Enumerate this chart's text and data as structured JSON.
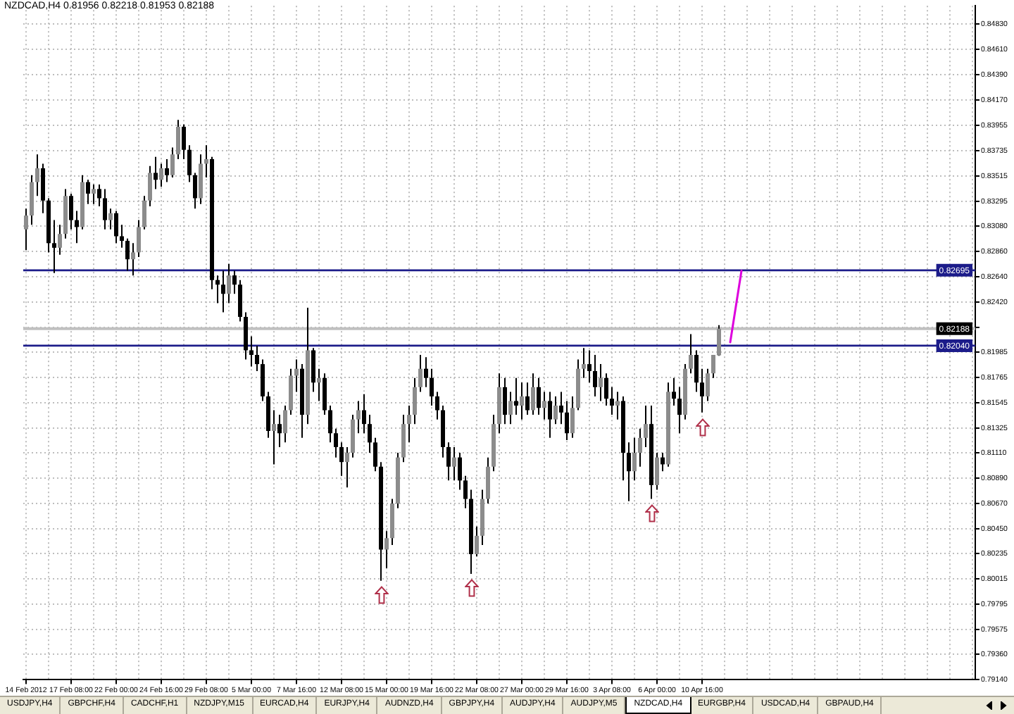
{
  "chart_data": {
    "type": "candlestick",
    "title": "NZDCAD,H4 0.81956 0.82218 0.81953 0.82188",
    "color": "#000000",
    "grid": true,
    "categories": [
      "14 Feb 2012",
      null,
      null,
      null,
      null,
      null,
      null,
      null,
      "17 Feb 08:00",
      null,
      null,
      null,
      null,
      null,
      null,
      null,
      "22 Feb 00:00",
      null,
      null,
      null,
      null,
      null,
      null,
      null,
      "24 Feb 16:00",
      null,
      null,
      null,
      null,
      null,
      null,
      null,
      "29 Feb 08:00",
      null,
      null,
      null,
      null,
      null,
      null,
      null,
      "5 Mar 00:00",
      null,
      null,
      null,
      null,
      null,
      null,
      null,
      "7 Mar 16:00",
      null,
      null,
      null,
      null,
      null,
      null,
      null,
      "12 Mar 08:00",
      null,
      null,
      null,
      null,
      null,
      null,
      null,
      "15 Mar 00:00",
      null,
      null,
      null,
      null,
      null,
      null,
      null,
      "19 Mar 16:00",
      null,
      null,
      null,
      null,
      null,
      null,
      null,
      "22 Mar 08:00",
      null,
      null,
      null,
      null,
      null,
      null,
      null,
      "27 Mar 00:00",
      null,
      null,
      null,
      null,
      null,
      null,
      null,
      "29 Mar 16:00",
      null,
      null,
      null,
      null,
      null,
      null,
      null,
      "3 Apr 08:00",
      null,
      null,
      null,
      null,
      null,
      null,
      null,
      "6 Apr 00:00",
      null,
      null,
      null,
      null,
      null,
      null,
      null,
      "10 Apr 16:00",
      null,
      null,
      null,
      null,
      null,
      null,
      null,
      null,
      null,
      null,
      null,
      null,
      null,
      null,
      null,
      null,
      null,
      null,
      null,
      null,
      null,
      null,
      null,
      null,
      null,
      null,
      null,
      null,
      null,
      null,
      null,
      null,
      null,
      null,
      null,
      null,
      null,
      null,
      null,
      null,
      null,
      null,
      null,
      null,
      null,
      null,
      null,
      null
    ],
    "ohlc": [
      [
        0.8305,
        0.8323,
        0.8287,
        0.8317
      ],
      [
        0.8317,
        0.8352,
        0.8309,
        0.8346
      ],
      [
        0.8346,
        0.837,
        0.8334,
        0.8358
      ],
      [
        0.8358,
        0.8362,
        0.8319,
        0.833
      ],
      [
        0.833,
        0.8332,
        0.8285,
        0.8293
      ],
      [
        0.8293,
        0.8313,
        0.8267,
        0.8289
      ],
      [
        0.8289,
        0.8309,
        0.8283,
        0.8301
      ],
      [
        0.8301,
        0.834,
        0.8297,
        0.8334
      ],
      [
        0.8334,
        0.8336,
        0.8305,
        0.8313
      ],
      [
        0.8313,
        0.8321,
        0.8293,
        0.8307
      ],
      [
        0.8307,
        0.8352,
        0.8305,
        0.8346
      ],
      [
        0.8346,
        0.8348,
        0.8327,
        0.8336
      ],
      [
        0.8336,
        0.8344,
        0.8327,
        0.834
      ],
      [
        0.834,
        0.8344,
        0.8325,
        0.8332
      ],
      [
        0.8332,
        0.834,
        0.8305,
        0.8313
      ],
      [
        0.8313,
        0.8323,
        0.8305,
        0.8319
      ],
      [
        0.8319,
        0.8321,
        0.8293,
        0.8299
      ],
      [
        0.8299,
        0.8309,
        0.8289,
        0.8295
      ],
      [
        0.8295,
        0.8297,
        0.8269,
        0.8279
      ],
      [
        0.8279,
        0.8293,
        0.8265,
        0.8285
      ],
      [
        0.8285,
        0.8313,
        0.8281,
        0.8307
      ],
      [
        0.8307,
        0.8334,
        0.8305,
        0.833
      ],
      [
        0.833,
        0.836,
        0.8325,
        0.8354
      ],
      [
        0.8354,
        0.8368,
        0.834,
        0.8348
      ],
      [
        0.8348,
        0.8362,
        0.8342,
        0.8358
      ],
      [
        0.8358,
        0.8366,
        0.8346,
        0.8352
      ],
      [
        0.8352,
        0.8376,
        0.835,
        0.837
      ],
      [
        0.837,
        0.84,
        0.8366,
        0.8394
      ],
      [
        0.8394,
        0.8396,
        0.8366,
        0.8374
      ],
      [
        0.8374,
        0.8378,
        0.8346,
        0.8352
      ],
      [
        0.8352,
        0.8354,
        0.8323,
        0.8332
      ],
      [
        0.8332,
        0.837,
        0.8327,
        0.8362
      ],
      [
        0.8362,
        0.8378,
        0.835,
        0.8366
      ],
      [
        0.8366,
        0.8368,
        0.8253,
        0.8261
      ],
      [
        0.8261,
        0.8265,
        0.8241,
        0.8257
      ],
      [
        0.8257,
        0.8269,
        0.8233,
        0.8249
      ],
      [
        0.8249,
        0.8275,
        0.8241,
        0.8265
      ],
      [
        0.8265,
        0.8269,
        0.8249,
        0.8257
      ],
      [
        0.8257,
        0.8261,
        0.8225,
        0.8229
      ],
      [
        0.8229,
        0.8233,
        0.8192,
        0.82
      ],
      [
        0.82,
        0.8212,
        0.8186,
        0.8196
      ],
      [
        0.8196,
        0.8204,
        0.8182,
        0.8188
      ],
      [
        0.8188,
        0.8192,
        0.8156,
        0.816
      ],
      [
        0.816,
        0.8164,
        0.8124,
        0.813
      ],
      [
        0.813,
        0.8148,
        0.8101,
        0.8136
      ],
      [
        0.8136,
        0.8144,
        0.8116,
        0.8128
      ],
      [
        0.8128,
        0.8152,
        0.812,
        0.8148
      ],
      [
        0.8148,
        0.8184,
        0.8144,
        0.8178
      ],
      [
        0.8178,
        0.8192,
        0.8164,
        0.8184
      ],
      [
        0.8184,
        0.8188,
        0.8124,
        0.8144
      ],
      [
        0.8144,
        0.8237,
        0.8136,
        0.82
      ],
      [
        0.82,
        0.8202,
        0.8164,
        0.8172
      ],
      [
        0.8172,
        0.8184,
        0.8156,
        0.8176
      ],
      [
        0.8176,
        0.818,
        0.8144,
        0.8148
      ],
      [
        0.8148,
        0.8152,
        0.812,
        0.8128
      ],
      [
        0.8128,
        0.8132,
        0.8107,
        0.8116
      ],
      [
        0.8116,
        0.812,
        0.8091,
        0.8103
      ],
      [
        0.8103,
        0.8116,
        0.8081,
        0.8111
      ],
      [
        0.8111,
        0.8144,
        0.8107,
        0.814
      ],
      [
        0.814,
        0.8156,
        0.8128,
        0.8148
      ],
      [
        0.8148,
        0.8162,
        0.8128,
        0.8136
      ],
      [
        0.8136,
        0.8144,
        0.8111,
        0.812
      ],
      [
        0.812,
        0.8124,
        0.8095,
        0.8099
      ],
      [
        0.8099,
        0.8103,
        0.8,
        0.8027
      ],
      [
        0.8027,
        0.8043,
        0.8011,
        0.8037
      ],
      [
        0.8037,
        0.8071,
        0.8031,
        0.8067
      ],
      [
        0.8067,
        0.8111,
        0.8063,
        0.8107
      ],
      [
        0.8107,
        0.8144,
        0.8103,
        0.8136
      ],
      [
        0.8136,
        0.8152,
        0.812,
        0.8144
      ],
      [
        0.8144,
        0.8176,
        0.8136,
        0.8168
      ],
      [
        0.8168,
        0.8196,
        0.8164,
        0.8184
      ],
      [
        0.8184,
        0.8194,
        0.8168,
        0.8176
      ],
      [
        0.8176,
        0.8184,
        0.8152,
        0.816
      ],
      [
        0.816,
        0.8164,
        0.814,
        0.8148
      ],
      [
        0.8148,
        0.8152,
        0.8107,
        0.8116
      ],
      [
        0.8116,
        0.812,
        0.8087,
        0.8099
      ],
      [
        0.8099,
        0.8116,
        0.8087,
        0.8107
      ],
      [
        0.8107,
        0.8111,
        0.8079,
        0.8087
      ],
      [
        0.8087,
        0.8091,
        0.8063,
        0.8071
      ],
      [
        0.8071,
        0.8079,
        0.8006,
        0.8023
      ],
      [
        0.8023,
        0.8047,
        0.8021,
        0.8039
      ],
      [
        0.8039,
        0.8079,
        0.8031,
        0.8071
      ],
      [
        0.8071,
        0.8107,
        0.8067,
        0.8099
      ],
      [
        0.8099,
        0.8144,
        0.8095,
        0.8136
      ],
      [
        0.8136,
        0.818,
        0.8128,
        0.8168
      ],
      [
        0.8168,
        0.8176,
        0.8136,
        0.8144
      ],
      [
        0.8144,
        0.8164,
        0.8136,
        0.8156
      ],
      [
        0.8156,
        0.8176,
        0.8144,
        0.8152
      ],
      [
        0.8152,
        0.8172,
        0.814,
        0.816
      ],
      [
        0.816,
        0.8172,
        0.8144,
        0.8148
      ],
      [
        0.8148,
        0.818,
        0.8144,
        0.8168
      ],
      [
        0.8168,
        0.8176,
        0.8144,
        0.815
      ],
      [
        0.815,
        0.8164,
        0.814,
        0.8156
      ],
      [
        0.8156,
        0.8164,
        0.8124,
        0.814
      ],
      [
        0.814,
        0.816,
        0.8136,
        0.8152
      ],
      [
        0.8152,
        0.8164,
        0.8136,
        0.8146
      ],
      [
        0.8146,
        0.8156,
        0.8122,
        0.8128
      ],
      [
        0.8128,
        0.816,
        0.8124,
        0.815
      ],
      [
        0.815,
        0.8192,
        0.8148,
        0.8184
      ],
      [
        0.8184,
        0.8202,
        0.8176,
        0.8188
      ],
      [
        0.8188,
        0.82,
        0.8172,
        0.8182
      ],
      [
        0.8182,
        0.8196,
        0.816,
        0.8168
      ],
      [
        0.8168,
        0.8188,
        0.8156,
        0.8176
      ],
      [
        0.8176,
        0.818,
        0.8152,
        0.8158
      ],
      [
        0.8158,
        0.8168,
        0.8144,
        0.8152
      ],
      [
        0.8152,
        0.8164,
        0.814,
        0.8156
      ],
      [
        0.8156,
        0.816,
        0.8087,
        0.8111
      ],
      [
        0.8111,
        0.812,
        0.8069,
        0.8095
      ],
      [
        0.8095,
        0.8124,
        0.8087,
        0.8111
      ],
      [
        0.8111,
        0.8132,
        0.8099,
        0.8124
      ],
      [
        0.8124,
        0.8152,
        0.8116,
        0.8136
      ],
      [
        0.8136,
        0.8152,
        0.8071,
        0.8083
      ],
      [
        0.8083,
        0.8111,
        0.8079,
        0.8107
      ],
      [
        0.8107,
        0.8111,
        0.8095,
        0.8101
      ],
      [
        0.8101,
        0.8172,
        0.8099,
        0.8164
      ],
      [
        0.8164,
        0.8176,
        0.8152,
        0.8158
      ],
      [
        0.8158,
        0.8168,
        0.8128,
        0.8144
      ],
      [
        0.8144,
        0.8188,
        0.814,
        0.8184
      ],
      [
        0.8184,
        0.8214,
        0.818,
        0.8196
      ],
      [
        0.8196,
        0.82,
        0.8164,
        0.8172
      ],
      [
        0.8172,
        0.8184,
        0.8146,
        0.816
      ],
      [
        0.816,
        0.8184,
        0.8156,
        0.818
      ],
      [
        0.818,
        0.8196,
        0.8176,
        0.8196
      ],
      [
        0.81956,
        0.82218,
        0.81953,
        0.82188
      ],
      null,
      null,
      null,
      null,
      null,
      null,
      null,
      null,
      null,
      null,
      null,
      null,
      null,
      null,
      null,
      null,
      null,
      null,
      null,
      null,
      null,
      null,
      null,
      null,
      null,
      null,
      null,
      null,
      null,
      null,
      null,
      null,
      null,
      null,
      null,
      null,
      null,
      null,
      null,
      null,
      null,
      null,
      null,
      null,
      null
    ],
    "colors": [
      "#8c8c8c",
      "#8c8c8c",
      "#8c8c8c",
      "#000000",
      "#000000",
      "#000000",
      "#8c8c8c",
      "#8c8c8c",
      "#000000",
      "#000000",
      "#8c8c8c",
      "#000000",
      "#8c8c8c",
      "#000000",
      "#000000",
      "#8c8c8c",
      "#000000",
      "#000000",
      "#000000",
      "#8c8c8c",
      "#8c8c8c",
      "#8c8c8c",
      "#8c8c8c",
      "#000000",
      "#8c8c8c",
      "#000000",
      "#8c8c8c",
      "#8c8c8c",
      "#000000",
      "#000000",
      "#000000",
      "#8c8c8c",
      "#8c8c8c",
      "#000000",
      "#000000",
      "#000000",
      "#8c8c8c",
      "#000000",
      "#000000",
      "#000000",
      "#000000",
      "#000000",
      "#000000",
      "#000000",
      "#8c8c8c",
      "#000000",
      "#8c8c8c",
      "#8c8c8c",
      "#8c8c8c",
      "#000000",
      "#8c8c8c",
      "#000000",
      "#8c8c8c",
      "#000000",
      "#000000",
      "#000000",
      "#000000",
      "#8c8c8c",
      "#8c8c8c",
      "#8c8c8c",
      "#000000",
      "#000000",
      "#000000",
      "#000000",
      "#8c8c8c",
      "#8c8c8c",
      "#8c8c8c",
      "#8c8c8c",
      "#8c8c8c",
      "#8c8c8c",
      "#8c8c8c",
      "#000000",
      "#000000",
      "#000000",
      "#000000",
      "#000000",
      "#8c8c8c",
      "#000000",
      "#000000",
      "#000000",
      "#8c8c8c",
      "#8c8c8c",
      "#8c8c8c",
      "#8c8c8c",
      "#8c8c8c",
      "#000000",
      "#8c8c8c",
      "#000000",
      "#8c8c8c",
      "#000000",
      "#8c8c8c",
      "#000000",
      "#8c8c8c",
      "#000000",
      "#8c8c8c",
      "#000000",
      "#000000",
      "#8c8c8c",
      "#8c8c8c",
      "#8c8c8c",
      "#000000",
      "#000000",
      "#8c8c8c",
      "#000000",
      "#000000",
      "#8c8c8c",
      "#000000",
      "#000000",
      "#8c8c8c",
      "#8c8c8c",
      "#8c8c8c",
      "#000000",
      "#8c8c8c",
      "#000000",
      "#8c8c8c",
      "#000000",
      "#000000",
      "#8c8c8c",
      "#8c8c8c",
      "#000000",
      "#000000",
      "#8c8c8c",
      "#8c8c8c",
      "#8c8c8c",
      null,
      null,
      null,
      null,
      null,
      null,
      null,
      null,
      null,
      null,
      null,
      null,
      null,
      null,
      null,
      null,
      null,
      null,
      null,
      null,
      null,
      null,
      null,
      null,
      null,
      null,
      null,
      null,
      null,
      null,
      null,
      null,
      null,
      null,
      null,
      null,
      null,
      null,
      null,
      null,
      null,
      null,
      null,
      null,
      null
    ],
    "series": [
      {
        "type": "line",
        "color": "#dd00dd",
        "values": [
          null,
          null,
          null,
          null,
          null,
          null,
          null,
          null,
          null,
          null,
          null,
          null,
          null,
          null,
          null,
          null,
          null,
          null,
          null,
          null,
          null,
          null,
          null,
          null,
          null,
          null,
          null,
          null,
          null,
          null,
          null,
          null,
          null,
          null,
          null,
          null,
          null,
          null,
          null,
          null,
          null,
          null,
          null,
          null,
          null,
          null,
          null,
          null,
          null,
          null,
          null,
          null,
          null,
          null,
          null,
          null,
          null,
          null,
          null,
          null,
          null,
          null,
          null,
          null,
          null,
          null,
          null,
          null,
          null,
          null,
          null,
          null,
          null,
          null,
          null,
          null,
          null,
          null,
          null,
          null,
          null,
          null,
          null,
          null,
          null,
          null,
          null,
          null,
          null,
          null,
          null,
          null,
          null,
          null,
          null,
          null,
          null,
          null,
          null,
          null,
          null,
          null,
          null,
          null,
          null,
          null,
          null,
          null,
          null,
          null,
          null,
          null,
          null,
          null,
          null,
          null,
          null,
          null,
          null,
          null,
          null,
          null,
          null,
          null,
          null,
          0.8207,
          null,
          0.8269,
          null,
          null,
          null,
          null,
          null,
          null,
          null,
          null,
          null,
          null,
          null,
          null,
          null,
          null,
          null,
          null,
          null,
          null,
          null,
          null,
          null,
          null,
          null,
          null,
          null,
          null,
          null,
          null,
          null,
          null,
          null,
          null,
          null,
          null,
          null,
          null,
          null,
          null,
          null,
          null,
          null
        ]
      }
    ],
    "ylim": [
      0.7914,
      0.8499
    ],
    "yticks": [
      {
        "value": 0.8483,
        "label": "0.84830"
      },
      {
        "value": 0.8461,
        "label": "0.84610"
      },
      {
        "value": 0.8439,
        "label": "0.84390"
      },
      {
        "value": 0.8417,
        "label": "0.84170"
      },
      0.83955,
      0.83735,
      0.83515,
      0.83295,
      {
        "value": 0.8308,
        "label": "0.83080"
      },
      {
        "value": 0.8286,
        "label": "0.82860"
      },
      {
        "value": 0.8264,
        "label": "0.82640"
      },
      {
        "value": 0.8242,
        "label": "0.82420"
      },
      {
        "value": 0.822,
        "label": null
      },
      0.81985,
      0.81765,
      0.81545,
      0.81325,
      {
        "value": 0.8111,
        "label": "0.81110"
      },
      {
        "value": 0.8089,
        "label": "0.80890"
      },
      {
        "value": 0.8067,
        "label": "0.80670"
      },
      {
        "value": 0.8045,
        "label": "0.80450"
      },
      0.80235,
      0.80015,
      0.79795,
      0.79575,
      {
        "value": 0.7936,
        "label": "0.79360"
      },
      {
        "value": 0.7914,
        "label": "0.79140"
      }
    ],
    "ref_lines": [
      {
        "axis": "y",
        "value": 0.82695,
        "label": "0.82695",
        "color": "#1c1c8a"
      },
      {
        "axis": "y",
        "value": 0.82188,
        "label": "0.82188",
        "color": "#c0c0c0"
      },
      {
        "axis": "y",
        "value": 0.8204,
        "label": "0.82040",
        "color": "#1c1c8a"
      }
    ],
    "annotations": [
      "USDJPY,H4",
      "GBPCHF,H4",
      "CADCHF,H1",
      "NZDJPY,M15",
      "EURCAD,H4",
      "EURJPY,H4",
      "AUDNZD,H4",
      "GBPJPY,H4",
      "AUDJPY,H4",
      "AUDJPY,M5",
      "NZDCAD,H4",
      "EURGBP,H4",
      "USDCAD,H4",
      "GBPAUD,H4"
    ]
  }
}
